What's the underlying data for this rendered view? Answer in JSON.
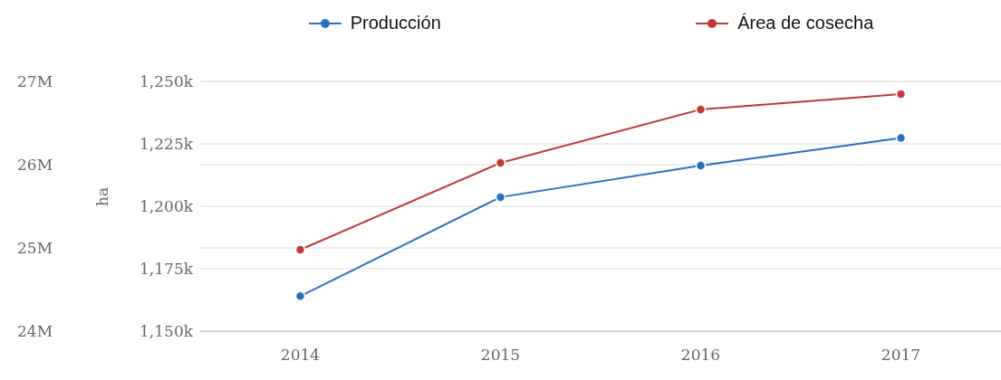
{
  "chart_data": {
    "type": "line",
    "categories": [
      "2014",
      "2015",
      "2016",
      "2017"
    ],
    "series": [
      {
        "name": "Producción",
        "color": "#2a6fc0",
        "axis": "y2",
        "values": [
          24420000,
          25610000,
          25990000,
          26320000
        ]
      },
      {
        "name": "Área de cosecha",
        "color": "#c0393b",
        "values": [
          1182600,
          1217400,
          1238800,
          1244900
        ]
      }
    ],
    "ylabel": "ha",
    "ylim": [
      1150000,
      1250000
    ],
    "yticks": [
      {
        "value": 1150000,
        "label": "1,150k"
      },
      {
        "value": 1175000,
        "label": "1,175k"
      },
      {
        "value": 1200000,
        "label": "1,200k"
      },
      {
        "value": 1225000,
        "label": "1,225k"
      },
      {
        "value": 1250000,
        "label": "1,250k"
      }
    ],
    "y2lim": [
      24000000,
      27000000
    ],
    "y2ticks": [
      {
        "value": 24000000,
        "label": "24M"
      },
      {
        "value": 25000000,
        "label": "25M"
      },
      {
        "value": 26000000,
        "label": "26M"
      },
      {
        "value": 27000000,
        "label": "27M"
      }
    ],
    "grid": "y",
    "legend": "top",
    "marker": "circle",
    "line_style": "solid"
  }
}
